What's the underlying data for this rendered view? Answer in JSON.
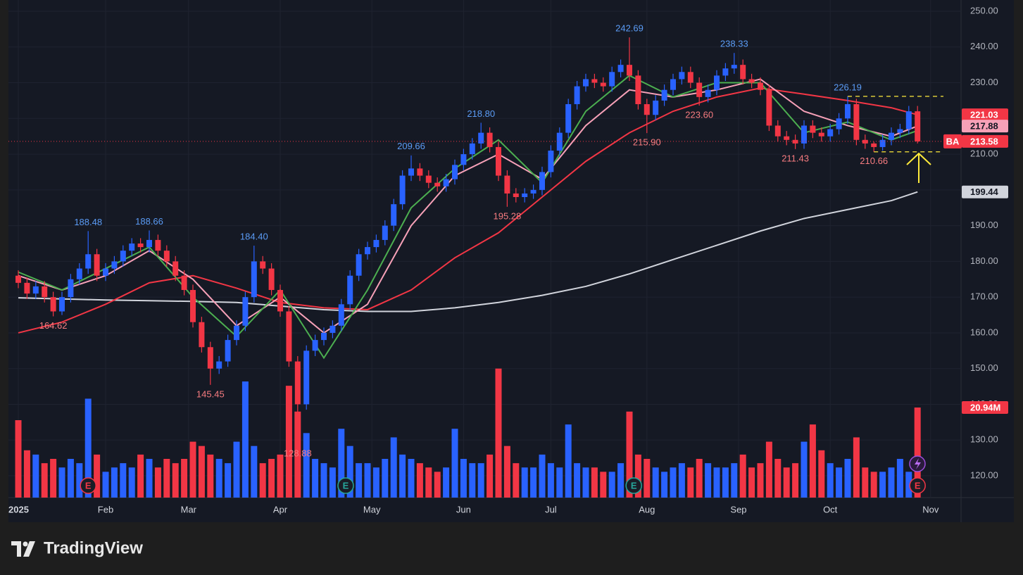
{
  "chart_data": {
    "type": "candlestick",
    "symbol": "BA",
    "up_color": "#2962ff",
    "down_color": "#f23645",
    "xlim": [
      -2.26,
      215.97
    ],
    "ylim": [
      113.9,
      253.15
    ],
    "y2lim": [
      0,
      115.7
    ],
    "grid": true,
    "xticks": [
      {
        "value": 0,
        "label": "2025"
      },
      {
        "value": 20,
        "label": "Feb"
      },
      {
        "value": 39,
        "label": "Mar"
      },
      {
        "value": 60,
        "label": "Apr"
      },
      {
        "value": 81,
        "label": "May"
      },
      {
        "value": 102,
        "label": "Jun"
      },
      {
        "value": 122,
        "label": "Jul"
      },
      {
        "value": 144,
        "label": "Aug"
      },
      {
        "value": 165,
        "label": "Sep"
      },
      {
        "value": 186,
        "label": "Oct"
      },
      {
        "value": 209,
        "label": "Nov"
      }
    ],
    "yticks": [
      {
        "value": 120,
        "label": "120.00"
      },
      {
        "value": 130,
        "label": "130.00"
      },
      {
        "value": 140,
        "label": "140.00"
      },
      {
        "value": 150,
        "label": "150.00"
      },
      {
        "value": 160,
        "label": "160.00"
      },
      {
        "value": 170,
        "label": "170.00"
      },
      {
        "value": 180,
        "label": "180.00"
      },
      {
        "value": 190,
        "label": "190.00"
      },
      {
        "value": 200,
        "label": "200.00"
      },
      {
        "value": 210,
        "label": "210.00"
      },
      {
        "value": 220,
        "label": "220.00"
      },
      {
        "value": 230,
        "label": "230.00"
      },
      {
        "value": 240,
        "label": "240.00"
      },
      {
        "value": 250,
        "label": "250.00"
      }
    ],
    "x": [
      0,
      2,
      4,
      6,
      8,
      10,
      12,
      14,
      16,
      18,
      20,
      22,
      24,
      26,
      28,
      30,
      32,
      34,
      36,
      38,
      40,
      42,
      44,
      46,
      48,
      50,
      52,
      54,
      56,
      58,
      60,
      62,
      64,
      66,
      68,
      70,
      72,
      74,
      76,
      78,
      80,
      82,
      84,
      86,
      88,
      90,
      92,
      94,
      96,
      98,
      100,
      102,
      104,
      106,
      108,
      110,
      112,
      114,
      116,
      118,
      120,
      122,
      124,
      126,
      128,
      130,
      132,
      134,
      136,
      138,
      140,
      142,
      144,
      146,
      148,
      150,
      152,
      154,
      156,
      158,
      160,
      162,
      164,
      166,
      168,
      170,
      172,
      174,
      176,
      178,
      180,
      182,
      184,
      186,
      188,
      190,
      192,
      194,
      196,
      198,
      200,
      202,
      204,
      206
    ],
    "open": [
      176,
      174,
      171,
      173,
      170,
      166,
      170,
      175,
      178,
      182,
      176,
      178,
      180,
      183,
      185,
      184,
      186,
      183,
      180,
      176,
      172,
      163,
      156,
      150,
      152,
      158,
      162,
      170,
      180,
      178,
      172,
      166,
      152,
      140,
      155,
      158,
      160,
      162,
      168,
      176,
      182,
      184,
      186,
      190,
      196,
      204,
      206,
      204,
      202,
      201,
      203,
      207,
      210,
      213,
      216,
      212,
      204,
      199,
      198,
      199,
      200,
      205,
      211,
      216,
      224,
      229,
      231,
      230,
      229,
      233,
      235,
      232,
      224,
      221,
      225,
      228,
      231,
      233,
      230,
      226,
      228,
      232,
      234,
      235,
      231,
      230,
      228,
      218,
      215,
      214,
      213,
      218,
      216,
      215,
      217,
      220,
      224,
      214,
      213,
      212,
      214,
      216,
      217,
      222
    ],
    "high": [
      177.5,
      175.5,
      174.5,
      174.5,
      171.5,
      171.5,
      176.5,
      179.5,
      188.48,
      183.5,
      179.5,
      181.5,
      184.5,
      186.5,
      186.5,
      188.66,
      187.5,
      184.5,
      181.5,
      177.5,
      173.5,
      164.5,
      157.5,
      153.5,
      159.5,
      163.5,
      171.5,
      184.4,
      181.5,
      179.5,
      173.5,
      167.5,
      153.5,
      156.5,
      159.5,
      161.5,
      163.5,
      169.5,
      177.5,
      183.5,
      185.5,
      187.5,
      191.5,
      197.5,
      205.5,
      209.66,
      207.5,
      205.5,
      203.5,
      204.5,
      208.5,
      211.5,
      214.5,
      218.8,
      217.5,
      213.5,
      205.5,
      200.5,
      200.5,
      201.5,
      206.5,
      212.5,
      217.5,
      225.5,
      230.5,
      232.5,
      232.5,
      231.5,
      234.5,
      236.5,
      242.69,
      233.5,
      225.5,
      226.5,
      229.5,
      232.5,
      234.5,
      234.5,
      231.5,
      229.5,
      233.5,
      235.5,
      238.33,
      236.5,
      232.5,
      231.5,
      229.5,
      219.5,
      216.5,
      215.5,
      219.5,
      219.5,
      217.5,
      218.5,
      221.5,
      226.19,
      225.5,
      215.5,
      213.5,
      215.5,
      217.5,
      218.5,
      223.5,
      223.5
    ],
    "low": [
      172.5,
      169.5,
      169.5,
      168.5,
      164.62,
      165,
      168.5,
      173.5,
      176.5,
      174.5,
      174.5,
      176.5,
      178.5,
      181.5,
      182.5,
      182.5,
      181.5,
      178.5,
      174.5,
      170.5,
      161.5,
      154.5,
      145.45,
      148.5,
      150.5,
      156.5,
      160.5,
      168.5,
      176.5,
      170.5,
      164.5,
      150.5,
      128.88,
      138.5,
      153.5,
      156.5,
      158.5,
      160.5,
      166.5,
      174.5,
      180.5,
      182.5,
      184.5,
      188.5,
      194.5,
      202.5,
      202.5,
      200.5,
      199.5,
      199.5,
      201.5,
      205.5,
      208.5,
      211.5,
      210.5,
      202.5,
      195.28,
      196.5,
      196.5,
      197.5,
      198.5,
      203.5,
      209.5,
      214.5,
      222.5,
      227.5,
      228.5,
      227.5,
      227.5,
      231.5,
      230.5,
      222.5,
      215.9,
      219.5,
      223.5,
      226.5,
      229.5,
      228.5,
      223.6,
      224.5,
      226.5,
      230.5,
      232.5,
      229.5,
      228.5,
      226.5,
      216.5,
      213.5,
      212.5,
      211.43,
      211.5,
      214.5,
      213.5,
      213.5,
      215.5,
      218.5,
      212.5,
      211.5,
      210.66,
      211,
      212.5,
      214.5,
      215.5,
      213
    ],
    "close": [
      174,
      171,
      173,
      170,
      166,
      170,
      175,
      178,
      182,
      176,
      178,
      180,
      183,
      185,
      184,
      186,
      183,
      180,
      176,
      172,
      163,
      156,
      150,
      152,
      158,
      162,
      170,
      180,
      178,
      172,
      166,
      152,
      140,
      155,
      158,
      160,
      162,
      168,
      176,
      182,
      184,
      186,
      190,
      196,
      204,
      206,
      204,
      202,
      201,
      203,
      207,
      210,
      213,
      216,
      212,
      204,
      199,
      198,
      199,
      200,
      205,
      211,
      216,
      224,
      229,
      231,
      230,
      229,
      233,
      235,
      232,
      224,
      221,
      225,
      228,
      231,
      233,
      230,
      226,
      228,
      232,
      234,
      235,
      231,
      230,
      228,
      218,
      215,
      214,
      213,
      218,
      216,
      215,
      217,
      220,
      224,
      214,
      213,
      212,
      214,
      216,
      217,
      222,
      213.58
    ],
    "volume": [
      18,
      11,
      10,
      8,
      9,
      7,
      9,
      8,
      23,
      10,
      6,
      7,
      8,
      7,
      10,
      9,
      7,
      9,
      8,
      9,
      13,
      12,
      10,
      9,
      8,
      13,
      27,
      12,
      8,
      9,
      10,
      26,
      20,
      15,
      9,
      8,
      7,
      16,
      12,
      8,
      8,
      7,
      9,
      14,
      10,
      9,
      8,
      7,
      6,
      7,
      16,
      9,
      8,
      8,
      10,
      30,
      12,
      8,
      7,
      7,
      10,
      8,
      7,
      17,
      8,
      7,
      7,
      6,
      6,
      8,
      20,
      10,
      9,
      7,
      6,
      7,
      8,
      7,
      9,
      8,
      7,
      7,
      8,
      10,
      7,
      8,
      13,
      9,
      7,
      8,
      13,
      17,
      11,
      8,
      7,
      9,
      14,
      7,
      6,
      6,
      7,
      9,
      6,
      20.94
    ],
    "volume_label": {
      "value": 20.94,
      "label": "20.94M"
    },
    "last_price": {
      "value": 213.58,
      "label": "213.58"
    },
    "series": [
      {
        "color": "#d1d4dc",
        "text_color": "#131722",
        "x": [
          0,
          10,
          20,
          30,
          40,
          50,
          60,
          70,
          80,
          90,
          100,
          110,
          120,
          130,
          140,
          150,
          160,
          170,
          180,
          190,
          200,
          206
        ],
        "values": [
          169.8,
          169.5,
          169.2,
          169,
          168.8,
          168.5,
          167.5,
          166.5,
          166,
          166,
          167,
          168.5,
          170.5,
          173,
          176.5,
          180.5,
          184.5,
          188.5,
          192,
          194.5,
          197,
          199.44
        ],
        "end_label": "199.44"
      },
      {
        "color": "#f23645",
        "text_color": "#ffffff",
        "x": [
          0,
          10,
          20,
          30,
          40,
          50,
          60,
          70,
          80,
          90,
          100,
          110,
          120,
          130,
          140,
          150,
          160,
          170,
          180,
          190,
          200,
          206
        ],
        "values": [
          160,
          163,
          168,
          174,
          176,
          172.5,
          168.5,
          167,
          166.5,
          172,
          181,
          188,
          198,
          208,
          216,
          222,
          226,
          228.5,
          226.8,
          225,
          223,
          221.03
        ],
        "end_label": "221.03"
      },
      {
        "color": "#f7a1b8",
        "text_color": "#131722",
        "x": [
          0,
          10,
          20,
          30,
          40,
          50,
          60,
          70,
          80,
          90,
          100,
          110,
          120,
          130,
          140,
          150,
          160,
          170,
          180,
          190,
          200,
          206
        ],
        "values": [
          176,
          172,
          176,
          183,
          175,
          162,
          170,
          160,
          168,
          190,
          204,
          210,
          203,
          218,
          228,
          226,
          228,
          231,
          222,
          218,
          215,
          217.88
        ],
        "end_label": "217.88"
      },
      {
        "color": "#4caf50",
        "x": [
          0,
          10,
          20,
          30,
          40,
          50,
          60,
          70,
          80,
          90,
          100,
          110,
          120,
          130,
          140,
          150,
          160,
          170,
          180,
          190,
          200,
          206
        ],
        "values": [
          177,
          172,
          178,
          184,
          170,
          159,
          172,
          153,
          172,
          195,
          206,
          214,
          202,
          222,
          232,
          226,
          230,
          230,
          216,
          219,
          214,
          216.6
        ]
      }
    ],
    "levels": [
      {
        "value": 226.19,
        "from": 190,
        "color": "#ffeb3b"
      },
      {
        "value": 210.66,
        "from": 196,
        "color": "#ffeb3b"
      }
    ],
    "annotation_colors": {
      "high": "#5b9cf6",
      "low": "#f77c80"
    },
    "annotations": [
      {
        "label": "164.62",
        "x": 8,
        "y": 164.62,
        "kind": "low"
      },
      {
        "label": "188.48",
        "x": 16,
        "y": 188.48,
        "kind": "high"
      },
      {
        "label": "188.66",
        "x": 30,
        "y": 188.66,
        "kind": "high"
      },
      {
        "label": "145.45",
        "x": 44,
        "y": 145.45,
        "kind": "low"
      },
      {
        "label": "184.40",
        "x": 54,
        "y": 184.4,
        "kind": "high"
      },
      {
        "label": "128.88",
        "x": 64,
        "y": 128.88,
        "kind": "low"
      },
      {
        "label": "209.66",
        "x": 90,
        "y": 209.66,
        "kind": "high"
      },
      {
        "label": "218.80",
        "x": 106,
        "y": 218.8,
        "kind": "high"
      },
      {
        "label": "195.28",
        "x": 112,
        "y": 195.28,
        "kind": "low"
      },
      {
        "label": "242.69",
        "x": 140,
        "y": 242.69,
        "kind": "high"
      },
      {
        "label": "215.90",
        "x": 144,
        "y": 215.9,
        "kind": "low"
      },
      {
        "label": "223.60",
        "x": 156,
        "y": 223.6,
        "kind": "low"
      },
      {
        "label": "238.33",
        "x": 164,
        "y": 238.33,
        "kind": "high"
      },
      {
        "label": "211.43",
        "x": 178,
        "y": 211.43,
        "kind": "low"
      },
      {
        "label": "226.19",
        "x": 190,
        "y": 226.19,
        "kind": "high"
      },
      {
        "label": "210.66",
        "x": 196,
        "y": 210.66,
        "kind": "low"
      }
    ],
    "events": [
      {
        "x": 16,
        "label": "E",
        "color": "#f23645"
      },
      {
        "x": 75,
        "label": "E",
        "color": "#26a69a"
      },
      {
        "x": 141,
        "label": "E",
        "color": "#26a69a"
      },
      {
        "x": 206,
        "label": "E",
        "color": "#f23645"
      }
    ]
  },
  "footer": {
    "brand": "TradingView"
  }
}
